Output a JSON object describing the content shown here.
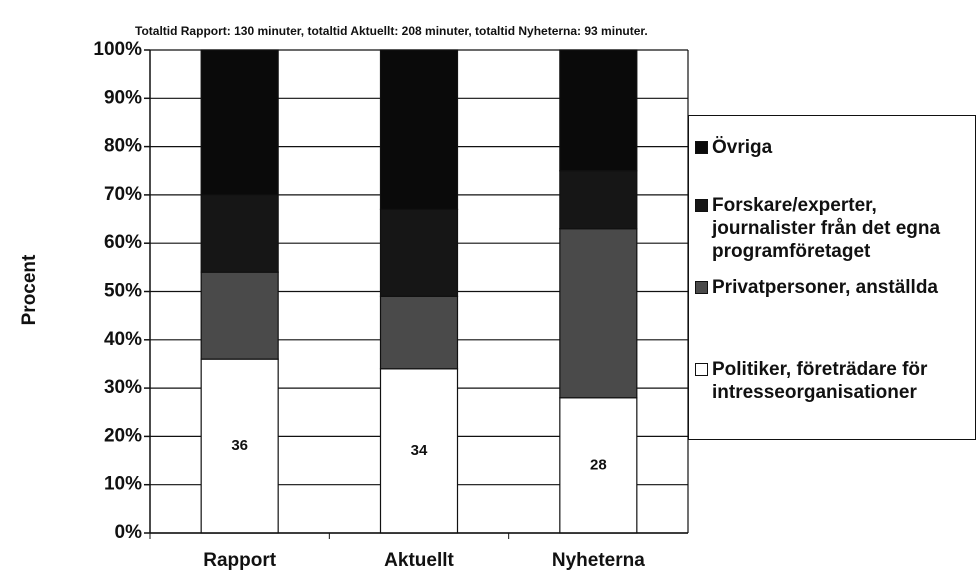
{
  "chart_data": {
    "type": "stacked_bar",
    "subtitle": "Totaltid Rapport: 130 minuter, totaltid Aktuellt: 208 minuter, totaltid Nyheterna: 93 minuter.",
    "y_label": "Procent",
    "categories": [
      "Rapport",
      "Aktuellt",
      "Nyheterna"
    ],
    "series": [
      {
        "name": "Politiker, företrädare för intresseorganisationer",
        "color": "#ffffff",
        "values": [
          36,
          34,
          28
        ],
        "labels": true
      },
      {
        "name": "Privatpersoner, anställda",
        "color": "#4a4a4a",
        "values": [
          18,
          15,
          35
        ]
      },
      {
        "name": "Forskare/experter, journalister från det egna programföretaget",
        "color": "#161616",
        "values": [
          16,
          18,
          12
        ]
      },
      {
        "name": "Övriga",
        "color": "#0a0a0a",
        "values": [
          30,
          33,
          25
        ]
      }
    ],
    "ylim": [
      0,
      100
    ],
    "yticks": [
      {
        "value": 0,
        "label": "0%"
      },
      {
        "value": 10,
        "label": "10%"
      },
      {
        "value": 20,
        "label": "20%"
      },
      {
        "value": 30,
        "label": "30%"
      },
      {
        "value": 40,
        "label": "40%"
      },
      {
        "value": 50,
        "label": "50%"
      },
      {
        "value": 60,
        "label": "60%"
      },
      {
        "value": 70,
        "label": "70%"
      },
      {
        "value": 80,
        "label": "80%"
      },
      {
        "value": 90,
        "label": "90%"
      },
      {
        "value": 100,
        "label": "100%"
      }
    ],
    "grid": true,
    "legend": "right"
  }
}
